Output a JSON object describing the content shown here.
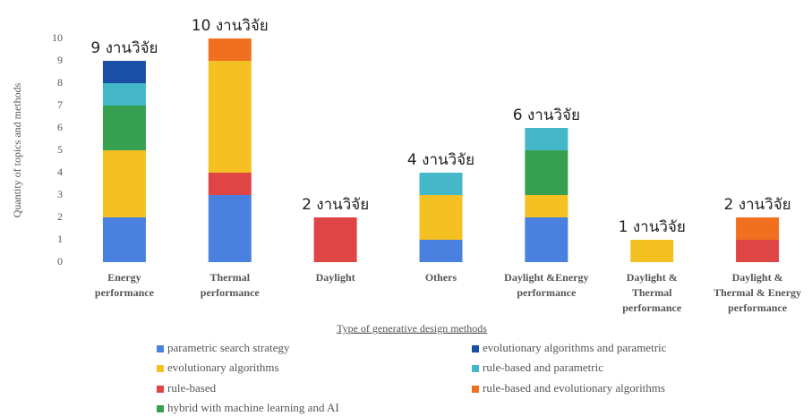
{
  "chart_data": {
    "type": "stacked_bar",
    "y_label": "Quantity of topics and methods",
    "x_label": "Type of generative design methods",
    "categories": [
      "Energy\nperformance",
      "Thermal\nperformance",
      "Daylight",
      "Others",
      "Daylight &Energy\nperformance",
      "Daylight &\nThermal\nperformance",
      "Daylight &\nThermal & Energy\nperformance"
    ],
    "total_labels": [
      "9 งานวิจัย",
      "10 งานวิจัย",
      "2 งานวิจัย",
      "4 งานวิจัย",
      "6 งานวิจัย",
      "1 งานวิจัย",
      "2 งานวิจัย"
    ],
    "series": [
      {
        "name": "parametric search strategy",
        "color": "#4a80e0",
        "values": [
          2,
          3,
          0,
          1,
          2,
          0,
          0
        ]
      },
      {
        "name": "rule-based",
        "color": "#e04545",
        "values": [
          0,
          1,
          2,
          0,
          0,
          0,
          1
        ]
      },
      {
        "name": "evolutionary algorithms",
        "color": "#f5c022",
        "values": [
          3,
          5,
          0,
          2,
          1,
          1,
          0
        ]
      },
      {
        "name": "hybrid with machine learning and AI",
        "color": "#34a050",
        "values": [
          2,
          0,
          0,
          0,
          2,
          0,
          0
        ]
      },
      {
        "name": "rule-based and parametric",
        "color": "#44b8c8",
        "values": [
          1,
          0,
          0,
          1,
          1,
          0,
          0
        ]
      },
      {
        "name": "evolutionary algorithms and parametric",
        "color": "#1a4fa5",
        "values": [
          1,
          0,
          0,
          0,
          0,
          0,
          0
        ]
      },
      {
        "name": "rule-based and evolutionary algorithms",
        "color": "#f07020",
        "values": [
          0,
          1,
          0,
          0,
          0,
          0,
          1
        ]
      }
    ],
    "ylim": [
      0,
      10
    ],
    "yticks": [
      0,
      1,
      2,
      3,
      4,
      5,
      6,
      7,
      8,
      9,
      10
    ],
    "grid": false
  }
}
